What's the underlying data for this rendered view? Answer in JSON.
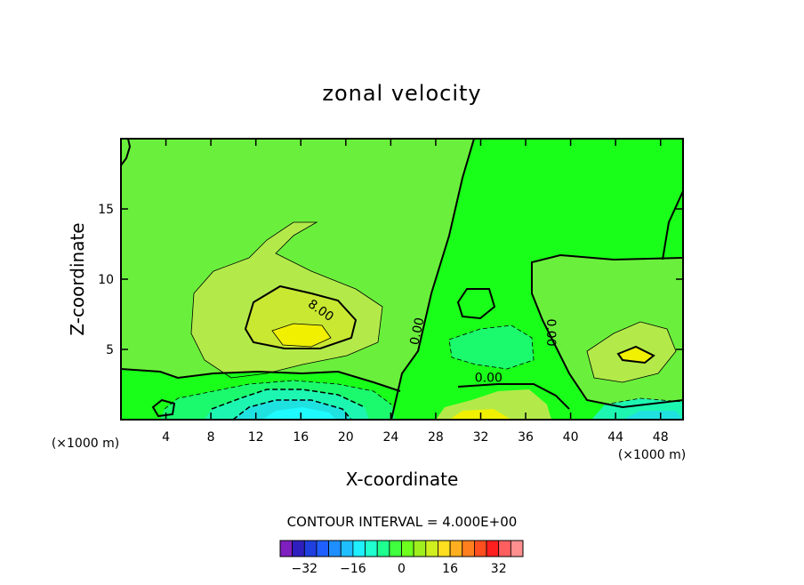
{
  "chart_data": {
    "type": "contour",
    "title": "zonal velocity",
    "xlabel": "X-coordinate",
    "ylabel": "Z-coordinate",
    "x_unit_left": "(×1000 m)",
    "x_unit_right": "(×1000 m)",
    "xlim": [
      0,
      50
    ],
    "ylim": [
      0,
      20
    ],
    "x_ticks": [
      4,
      8,
      12,
      16,
      20,
      24,
      28,
      32,
      36,
      40,
      44,
      48
    ],
    "y_ticks": [
      5,
      10,
      15
    ],
    "contour_interval_text": "CONTOUR INTERVAL = 4.000E+00",
    "contour_labels": [
      {
        "text": "8.00",
        "x": 17.8,
        "y": 7.8,
        "rotate": 35
      },
      {
        "text": "0.00",
        "x": 26.3,
        "y": 6.3,
        "rotate": -78
      },
      {
        "text": "0.00",
        "x": 32.7,
        "y": 3.0,
        "rotate": 0
      },
      {
        "text": "0.00",
        "x": 38.3,
        "y": 6.2,
        "rotate": 90
      }
    ],
    "colorbar": {
      "colors": [
        "#7f1fbf",
        "#2f1fbf",
        "#1f3fdf",
        "#1f5fff",
        "#1f8fff",
        "#1fbfff",
        "#1fefff",
        "#1fffcf",
        "#1fff8f",
        "#3fff3f",
        "#6fff1f",
        "#9fef1f",
        "#cfef1f",
        "#ffdf1f",
        "#ffaf1f",
        "#ff7f1f",
        "#ff4f1f",
        "#ff1f1f",
        "#ff5f5f",
        "#ff8f8f"
      ],
      "tick_labels": [
        "-32",
        "-16",
        "0",
        "16",
        "32"
      ],
      "tick_values": [
        -32,
        -16,
        0,
        16,
        32
      ],
      "vmin": -40,
      "vmax": 40
    },
    "fill_colors": {
      "v0": "#19ff19",
      "v4": "#6af03c",
      "v8": "#b3ea4a",
      "v12": "#f0f000",
      "vm4": "#1bfa6d",
      "vm8": "#1df6b0",
      "vm12": "#1fe2e0",
      "vm16": "#1ffaff"
    }
  }
}
